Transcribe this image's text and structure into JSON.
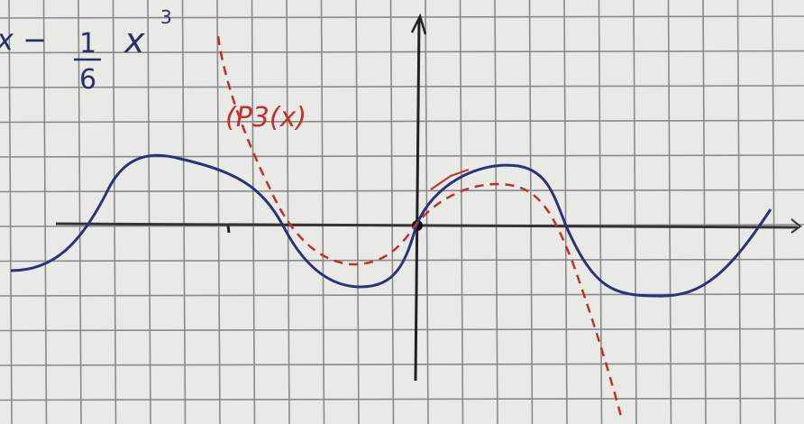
{
  "formula": {
    "lead": "x −",
    "numerator": "1",
    "denominator": "6",
    "variable": "x",
    "exponent": "3"
  },
  "label": "(P3(x)"
}
